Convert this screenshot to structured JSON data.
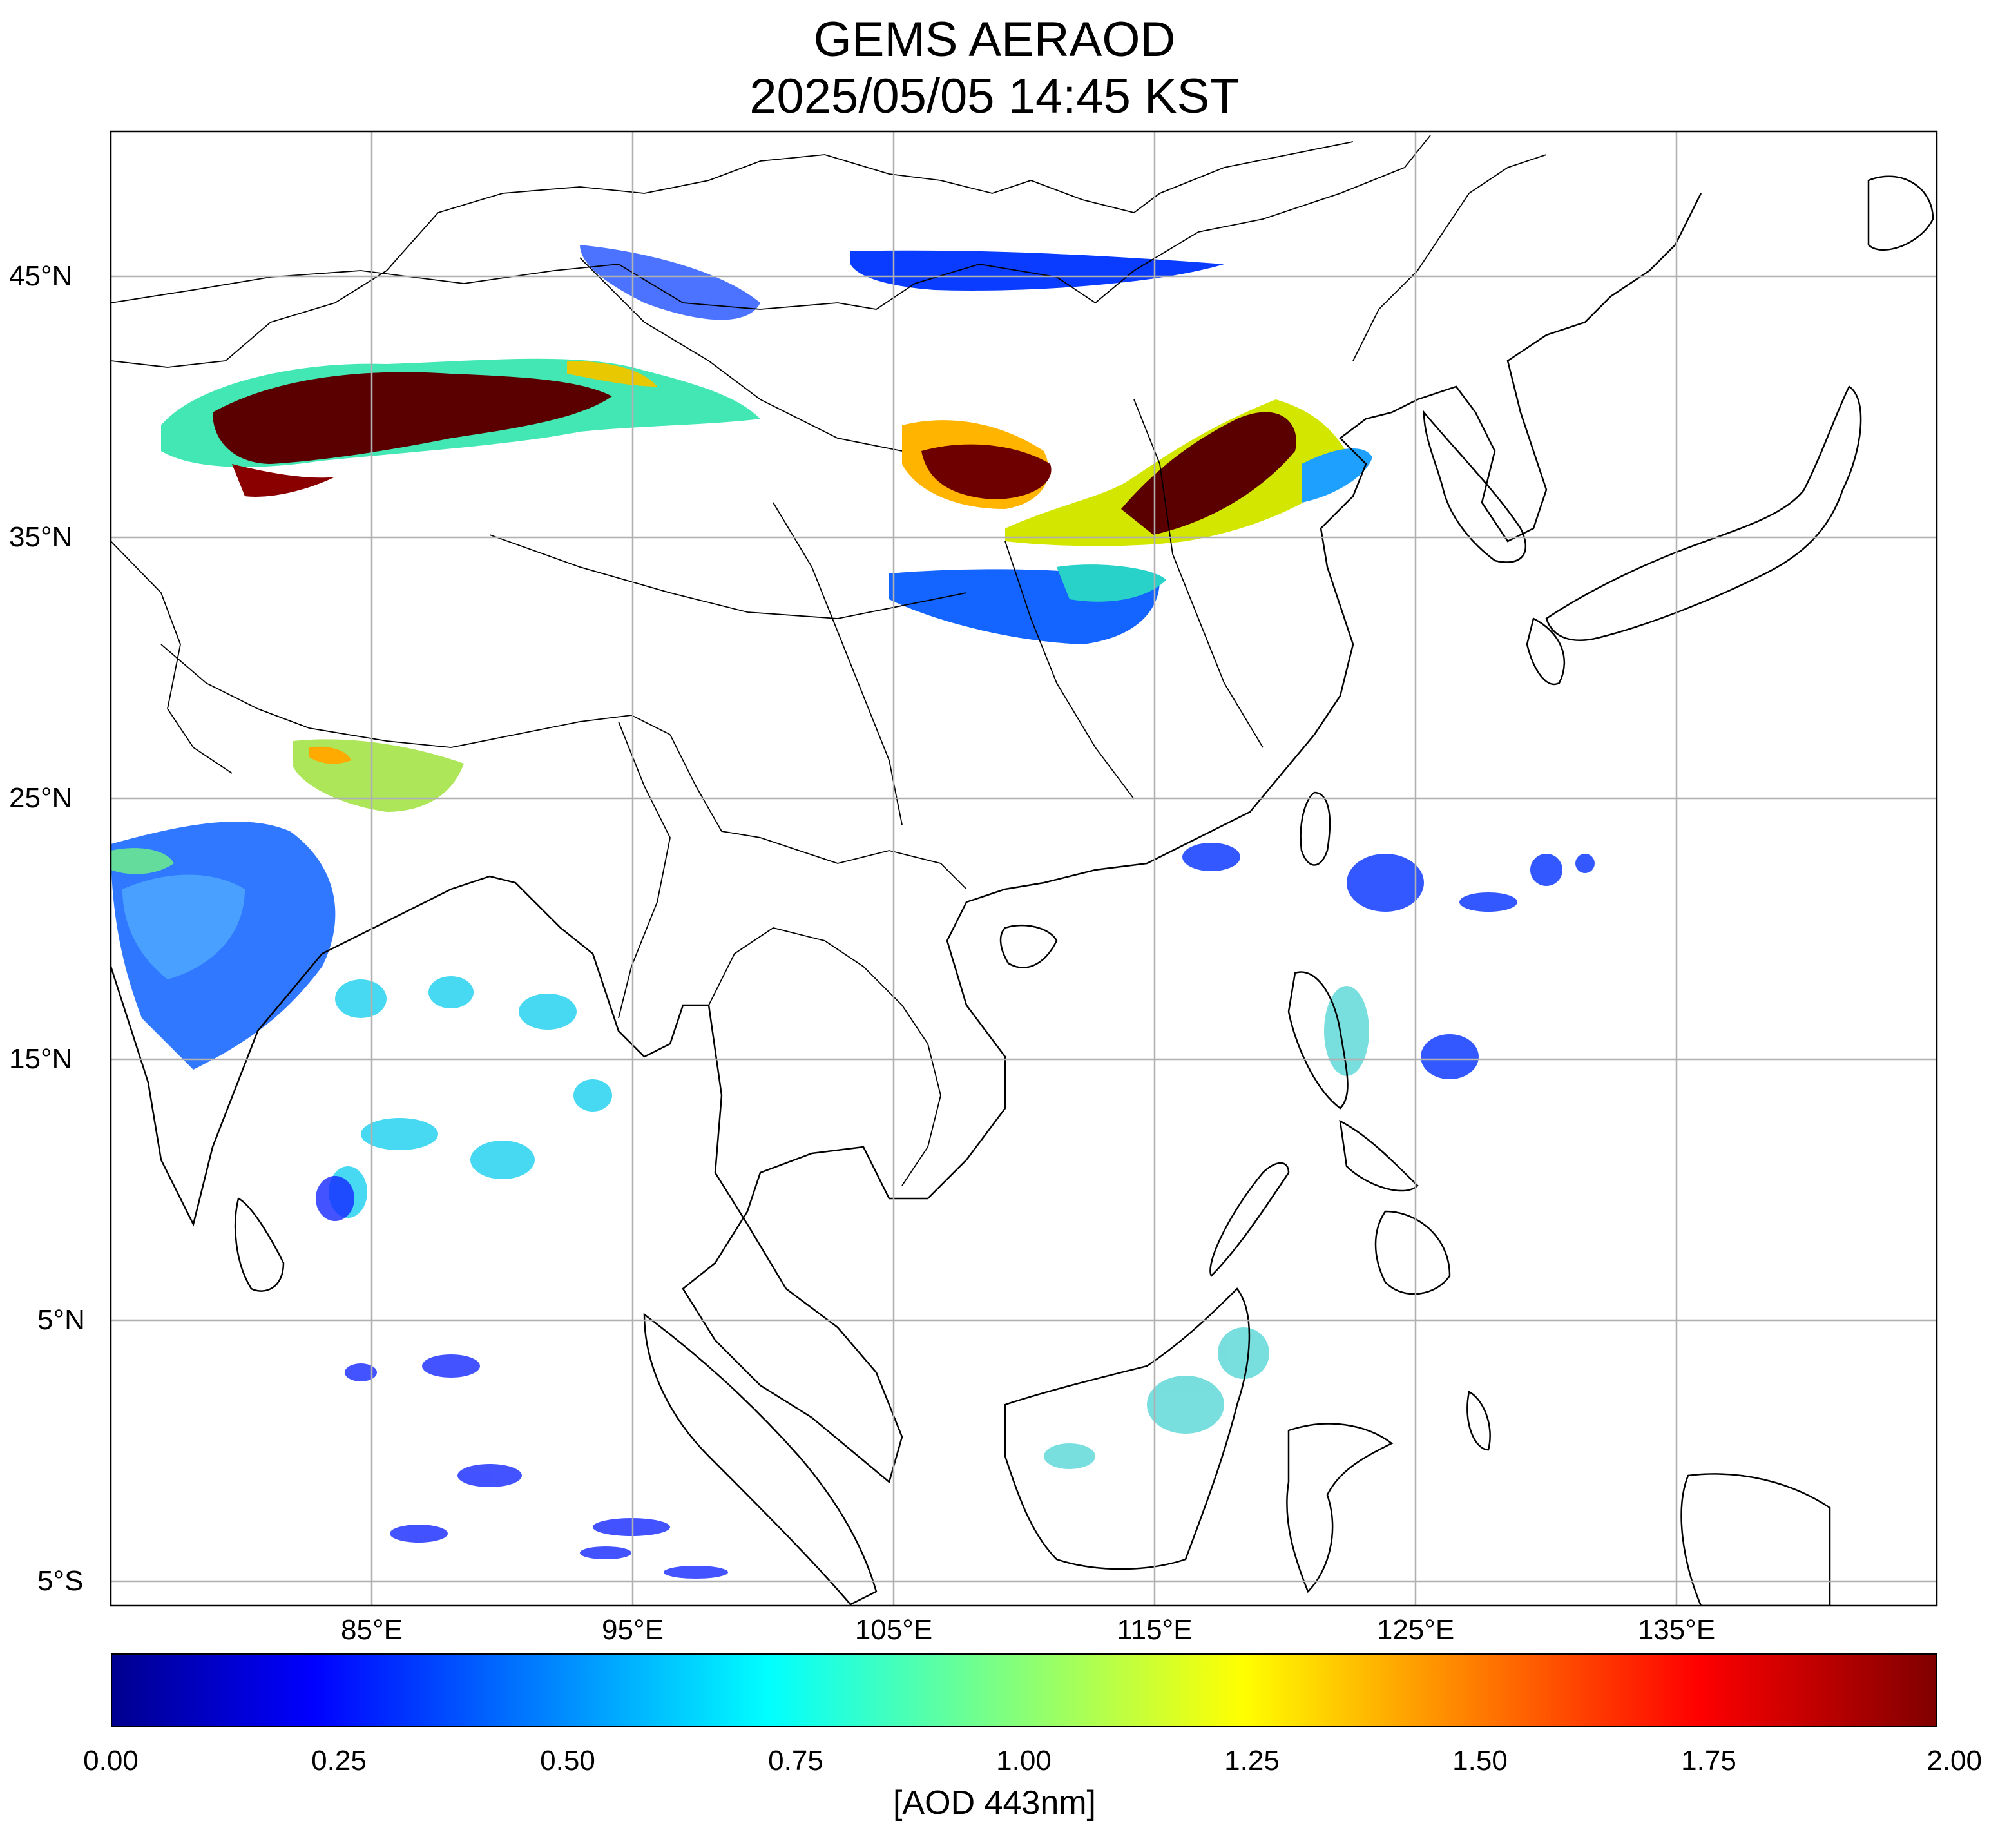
{
  "title": {
    "line1": "GEMS AERAOD",
    "line2": "2025/05/05 14:45 KST"
  },
  "map": {
    "lat_ticks": [
      "45°N",
      "35°N",
      "25°N",
      "15°N",
      "5°N",
      "5°S"
    ],
    "lon_ticks": [
      "85°E",
      "95°E",
      "105°E",
      "115°E",
      "125°E",
      "135°E"
    ],
    "grid": true,
    "coastlines": true,
    "country_borders": true
  },
  "colorbar": {
    "colormap": "jet",
    "range": [
      0.0,
      2.0
    ],
    "ticks": [
      "0.00",
      "0.25",
      "0.50",
      "0.75",
      "1.00",
      "1.25",
      "1.50",
      "1.75",
      "2.00"
    ],
    "label": "[AOD 443nm]"
  },
  "colors": {
    "gridline": "#b0b0b0",
    "coastline": "#000000",
    "low": "#00008f",
    "high": "#800000"
  }
}
